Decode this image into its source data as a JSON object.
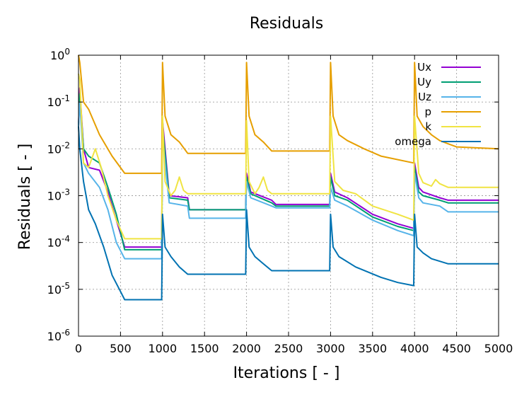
{
  "chart_data": {
    "type": "line",
    "title": "Residuals",
    "xlabel": "Iterations [ - ]",
    "ylabel": "Residuals [ - ]",
    "xlim": [
      0,
      5000
    ],
    "ylim": [
      1e-06,
      1
    ],
    "y_scale": "log",
    "grid": true,
    "legend_position": "top-right",
    "x_ticks": [
      "0",
      "500",
      "1000",
      "1500",
      "2000",
      "2500",
      "3000",
      "3500",
      "4000",
      "4500",
      "5000"
    ],
    "y_ticks": [
      {
        "mant": "10",
        "exp": "-6",
        "value": 1e-06
      },
      {
        "mant": "10",
        "exp": "-5",
        "value": 1e-05
      },
      {
        "mant": "10",
        "exp": "-4",
        "value": 0.0001
      },
      {
        "mant": "10",
        "exp": "-3",
        "value": 0.001
      },
      {
        "mant": "10",
        "exp": "-2",
        "value": 0.01
      },
      {
        "mant": "10",
        "exp": "-1",
        "value": 0.1
      },
      {
        "mant": "10",
        "exp": "0",
        "value": 1
      }
    ],
    "series": [
      {
        "name": "Ux",
        "color": "#9400d3",
        "points": [
          [
            0,
            0.03
          ],
          [
            15,
            0.2
          ],
          [
            60,
            0.01
          ],
          [
            120,
            0.004
          ],
          [
            250,
            0.0035
          ],
          [
            350,
            0.0012
          ],
          [
            450,
            0.0003
          ],
          [
            550,
            8e-05
          ],
          [
            990,
            8e-05
          ],
          [
            1000,
            0.04
          ],
          [
            1030,
            0.01
          ],
          [
            1080,
            0.001
          ],
          [
            1300,
            0.0009
          ],
          [
            1320,
            0.0005
          ],
          [
            1990,
            0.0005
          ],
          [
            2000,
            0.003
          ],
          [
            2050,
            0.0012
          ],
          [
            2300,
            0.0008
          ],
          [
            2350,
            0.00065
          ],
          [
            2990,
            0.00065
          ],
          [
            3000,
            0.003
          ],
          [
            3050,
            0.0012
          ],
          [
            3200,
            0.0009
          ],
          [
            3500,
            0.0004
          ],
          [
            3800,
            0.00025
          ],
          [
            3990,
            0.0002
          ],
          [
            4000,
            0.005
          ],
          [
            4050,
            0.0015
          ],
          [
            4100,
            0.0012
          ],
          [
            4300,
            0.0009
          ],
          [
            4400,
            0.0008
          ],
          [
            5000,
            0.0008
          ]
        ]
      },
      {
        "name": "Uy",
        "color": "#009e73",
        "points": [
          [
            0,
            0.03
          ],
          [
            15,
            0.15
          ],
          [
            60,
            0.01
          ],
          [
            120,
            0.007
          ],
          [
            250,
            0.005
          ],
          [
            350,
            0.0015
          ],
          [
            450,
            0.0004
          ],
          [
            550,
            7e-05
          ],
          [
            990,
            7e-05
          ],
          [
            1000,
            0.03
          ],
          [
            1030,
            0.008
          ],
          [
            1080,
            0.0009
          ],
          [
            1300,
            0.0008
          ],
          [
            1320,
            0.0005
          ],
          [
            1990,
            0.0005
          ],
          [
            2000,
            0.0025
          ],
          [
            2050,
            0.0011
          ],
          [
            2300,
            0.0007
          ],
          [
            2350,
            0.0006
          ],
          [
            2990,
            0.0006
          ],
          [
            3000,
            0.0025
          ],
          [
            3050,
            0.001
          ],
          [
            3200,
            0.0008
          ],
          [
            3500,
            0.00035
          ],
          [
            3800,
            0.00022
          ],
          [
            3990,
            0.00018
          ],
          [
            4000,
            0.004
          ],
          [
            4050,
            0.0012
          ],
          [
            4100,
            0.001
          ],
          [
            4300,
            0.0008
          ],
          [
            4400,
            0.0007
          ],
          [
            5000,
            0.0007
          ]
        ]
      },
      {
        "name": "Uz",
        "color": "#56b4e9",
        "points": [
          [
            0,
            0.03
          ],
          [
            15,
            0.1
          ],
          [
            60,
            0.005
          ],
          [
            120,
            0.003
          ],
          [
            250,
            0.0015
          ],
          [
            350,
            0.0005
          ],
          [
            450,
            0.0001
          ],
          [
            550,
            4.5e-05
          ],
          [
            990,
            4.5e-05
          ],
          [
            1000,
            0.02
          ],
          [
            1030,
            0.005
          ],
          [
            1080,
            0.0007
          ],
          [
            1300,
            0.0006
          ],
          [
            1320,
            0.00033
          ],
          [
            1990,
            0.00033
          ],
          [
            2000,
            0.002
          ],
          [
            2050,
            0.0009
          ],
          [
            2300,
            0.0006
          ],
          [
            2350,
            0.00055
          ],
          [
            2990,
            0.00055
          ],
          [
            3000,
            0.0015
          ],
          [
            3050,
            0.0008
          ],
          [
            3200,
            0.0006
          ],
          [
            3500,
            0.0003
          ],
          [
            3800,
            0.00018
          ],
          [
            3990,
            0.00014
          ],
          [
            4000,
            0.003
          ],
          [
            4050,
            0.0009
          ],
          [
            4100,
            0.0007
          ],
          [
            4300,
            0.0006
          ],
          [
            4400,
            0.00045
          ],
          [
            5000,
            0.00045
          ]
        ]
      },
      {
        "name": "p",
        "color": "#e69f00",
        "points": [
          [
            0,
            1
          ],
          [
            15,
            0.7
          ],
          [
            60,
            0.1
          ],
          [
            120,
            0.07
          ],
          [
            250,
            0.02
          ],
          [
            400,
            0.007
          ],
          [
            550,
            0.003
          ],
          [
            990,
            0.003
          ],
          [
            1000,
            0.7
          ],
          [
            1030,
            0.05
          ],
          [
            1100,
            0.02
          ],
          [
            1200,
            0.014
          ],
          [
            1300,
            0.008
          ],
          [
            1990,
            0.008
          ],
          [
            2000,
            0.7
          ],
          [
            2030,
            0.05
          ],
          [
            2100,
            0.02
          ],
          [
            2200,
            0.014
          ],
          [
            2300,
            0.009
          ],
          [
            2990,
            0.009
          ],
          [
            3000,
            0.7
          ],
          [
            3030,
            0.05
          ],
          [
            3100,
            0.02
          ],
          [
            3200,
            0.015
          ],
          [
            3400,
            0.01
          ],
          [
            3600,
            0.007
          ],
          [
            3990,
            0.005
          ],
          [
            4000,
            0.7
          ],
          [
            4030,
            0.05
          ],
          [
            4100,
            0.03
          ],
          [
            4200,
            0.02
          ],
          [
            4300,
            0.015
          ],
          [
            4500,
            0.011
          ],
          [
            5000,
            0.01
          ]
        ]
      },
      {
        "name": "k",
        "color": "#f0e442",
        "points": [
          [
            0,
            0.4
          ],
          [
            15,
            0.3
          ],
          [
            60,
            0.005
          ],
          [
            120,
            0.004
          ],
          [
            200,
            0.01
          ],
          [
            270,
            0.004
          ],
          [
            350,
            0.001
          ],
          [
            450,
            0.0003
          ],
          [
            550,
            0.00012
          ],
          [
            990,
            0.00012
          ],
          [
            1000,
            0.05
          ],
          [
            1030,
            0.002
          ],
          [
            1100,
            0.001
          ],
          [
            1150,
            0.0013
          ],
          [
            1200,
            0.0025
          ],
          [
            1250,
            0.0013
          ],
          [
            1300,
            0.0011
          ],
          [
            1990,
            0.0011
          ],
          [
            2000,
            0.04
          ],
          [
            2030,
            0.002
          ],
          [
            2100,
            0.0011
          ],
          [
            2150,
            0.0015
          ],
          [
            2200,
            0.0025
          ],
          [
            2250,
            0.0013
          ],
          [
            2300,
            0.0011
          ],
          [
            2990,
            0.0011
          ],
          [
            3000,
            0.05
          ],
          [
            3050,
            0.002
          ],
          [
            3150,
            0.0013
          ],
          [
            3300,
            0.0011
          ],
          [
            3500,
            0.0006
          ],
          [
            3800,
            0.0004
          ],
          [
            3990,
            0.0003
          ],
          [
            4000,
            0.05
          ],
          [
            4050,
            0.003
          ],
          [
            4100,
            0.0019
          ],
          [
            4200,
            0.0016
          ],
          [
            4250,
            0.0022
          ],
          [
            4300,
            0.0018
          ],
          [
            4400,
            0.0015
          ],
          [
            5000,
            0.0015
          ]
        ]
      },
      {
        "name": "omega",
        "color": "#0072b2",
        "points": [
          [
            0,
            0.03
          ],
          [
            15,
            0.01
          ],
          [
            60,
            0.002
          ],
          [
            120,
            0.0005
          ],
          [
            200,
            0.00025
          ],
          [
            300,
            8e-05
          ],
          [
            400,
            2e-05
          ],
          [
            500,
            9e-06
          ],
          [
            550,
            6e-06
          ],
          [
            990,
            6e-06
          ],
          [
            1000,
            0.0004
          ],
          [
            1030,
            8e-05
          ],
          [
            1100,
            5e-05
          ],
          [
            1200,
            3e-05
          ],
          [
            1300,
            2.1e-05
          ],
          [
            1990,
            2.1e-05
          ],
          [
            2000,
            0.0005
          ],
          [
            2030,
            8e-05
          ],
          [
            2100,
            5e-05
          ],
          [
            2200,
            3.5e-05
          ],
          [
            2300,
            2.5e-05
          ],
          [
            2990,
            2.5e-05
          ],
          [
            3000,
            0.0004
          ],
          [
            3030,
            8e-05
          ],
          [
            3100,
            5e-05
          ],
          [
            3300,
            3e-05
          ],
          [
            3600,
            1.8e-05
          ],
          [
            3800,
            1.4e-05
          ],
          [
            3990,
            1.2e-05
          ],
          [
            4000,
            0.0004
          ],
          [
            4030,
            8e-05
          ],
          [
            4100,
            6e-05
          ],
          [
            4200,
            4.5e-05
          ],
          [
            4400,
            3.5e-05
          ],
          [
            5000,
            3.5e-05
          ]
        ]
      }
    ]
  }
}
